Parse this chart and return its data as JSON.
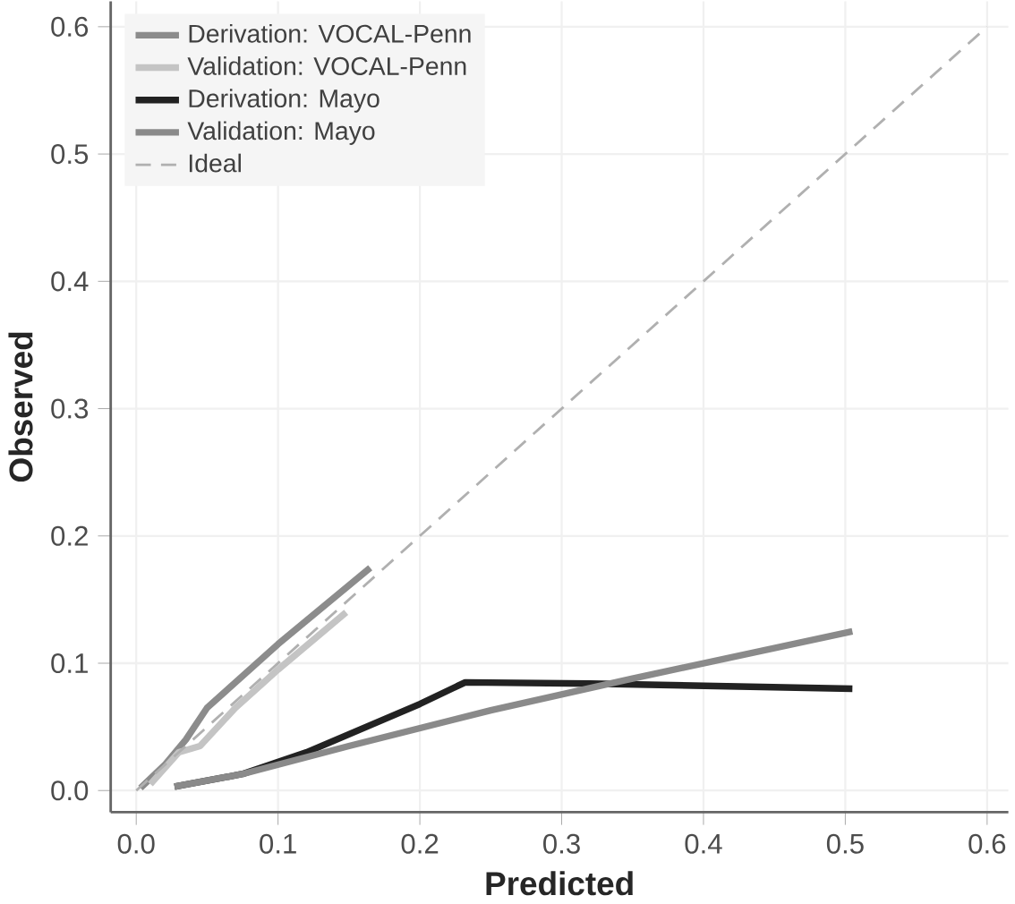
{
  "chart_data": {
    "type": "line",
    "xlabel": "Predicted",
    "ylabel": "Observed",
    "xlim": [
      -0.018,
      0.615
    ],
    "ylim": [
      -0.017,
      0.62
    ],
    "xticks": [
      {
        "value": 0,
        "label": "0.0"
      },
      0.1,
      0.2,
      0.3,
      0.4,
      0.5,
      0.6
    ],
    "yticks": [
      {
        "value": 0,
        "label": "0.0"
      },
      0.1,
      0.2,
      0.3,
      0.4,
      0.5,
      0.6
    ],
    "grid": true,
    "legend": "top left",
    "marker": "none",
    "series": [
      {
        "name": "Derivation: VOCAL-Penn",
        "color": "#8c8c8c",
        "line_style": "solid",
        "x": [
          0.003,
          0.02,
          0.035,
          0.05,
          0.1,
          0.165
        ],
        "values": [
          0.002,
          0.02,
          0.04,
          0.065,
          0.115,
          0.175
        ]
      },
      {
        "name": "Validation: VOCAL-Penn",
        "color": "#c4c4c4",
        "line_style": "solid",
        "x": [
          0.01,
          0.03,
          0.045,
          0.07,
          0.1,
          0.148
        ],
        "values": [
          0.005,
          0.03,
          0.035,
          0.065,
          0.095,
          0.14
        ]
      },
      {
        "name": "Derivation: Mayo",
        "color": "#222222",
        "line_style": "solid",
        "x": [
          0.027,
          0.075,
          0.12,
          0.2,
          0.232,
          0.32,
          0.505
        ],
        "values": [
          0.003,
          0.013,
          0.03,
          0.068,
          0.085,
          0.084,
          0.08
        ]
      },
      {
        "name": "Validation: Mayo",
        "color": "#8a8a8a",
        "line_style": "solid",
        "x": [
          0.027,
          0.075,
          0.15,
          0.25,
          0.35,
          0.505
        ],
        "values": [
          0.003,
          0.013,
          0.035,
          0.063,
          0.088,
          0.125
        ]
      },
      {
        "name": "Ideal",
        "color": "#b0b0b0",
        "line_style": "dashed",
        "x": [
          0,
          0.6
        ],
        "values": [
          0,
          0.6
        ]
      }
    ]
  }
}
